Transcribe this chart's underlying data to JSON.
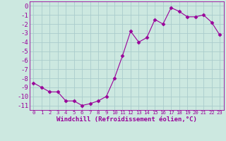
{
  "x": [
    0,
    1,
    2,
    3,
    4,
    5,
    6,
    7,
    8,
    9,
    10,
    11,
    12,
    13,
    14,
    15,
    16,
    17,
    18,
    19,
    20,
    21,
    22,
    23
  ],
  "y": [
    -8.5,
    -9.0,
    -9.5,
    -9.5,
    -10.5,
    -10.5,
    -11.0,
    -10.8,
    -10.5,
    -10.0,
    -8.0,
    -5.5,
    -2.8,
    -4.0,
    -3.5,
    -1.5,
    -2.0,
    -0.2,
    -0.6,
    -1.2,
    -1.2,
    -1.0,
    -1.8,
    -3.2
  ],
  "line_color": "#990099",
  "marker": "D",
  "marker_size": 2.5,
  "bg_color": "#cce8e0",
  "grid_color": "#aacccc",
  "xlabel": "Windchill (Refroidissement éolien,°C)",
  "ylim": [
    -11.5,
    0.5
  ],
  "xlim": [
    -0.5,
    23.5
  ],
  "yticks": [
    0,
    -1,
    -2,
    -3,
    -4,
    -5,
    -6,
    -7,
    -8,
    -9,
    -10,
    -11
  ],
  "xticks": [
    0,
    1,
    2,
    3,
    4,
    5,
    6,
    7,
    8,
    9,
    10,
    11,
    12,
    13,
    14,
    15,
    16,
    17,
    18,
    19,
    20,
    21,
    22,
    23
  ],
  "tick_color": "#990099",
  "ytick_fontsize": 6.5,
  "xtick_fontsize": 5.2,
  "xlabel_fontsize": 6.5
}
